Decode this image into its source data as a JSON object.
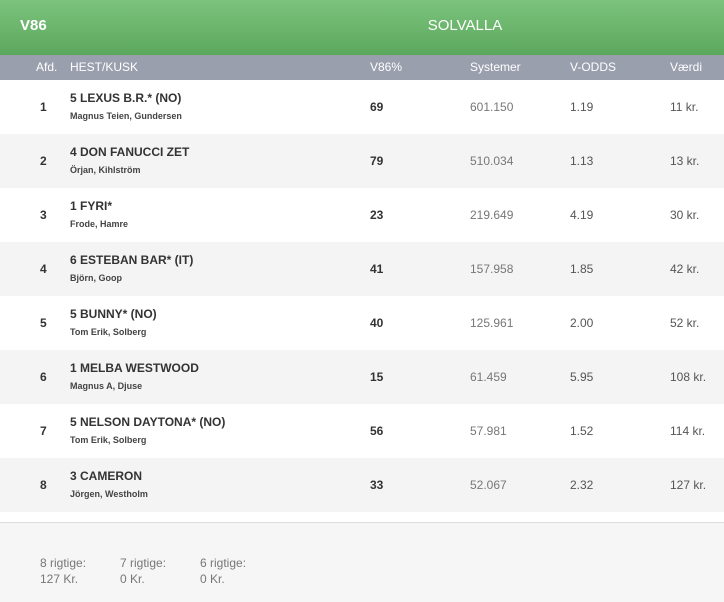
{
  "header": {
    "game": "V86",
    "track": "SOLVALLA"
  },
  "table": {
    "columns": [
      "Afd.",
      "HEST/KUSK",
      "V86%",
      "Systemer",
      "V-ODDS",
      "Værdi"
    ],
    "rows": [
      {
        "afd": "1",
        "horse": "5 LEXUS B.R.* (NO)",
        "driver": "Magnus Teien, Gundersen",
        "pct": "69",
        "systems": "601.150",
        "odds": "1.19",
        "value": "11 kr."
      },
      {
        "afd": "2",
        "horse": "4 DON FANUCCI ZET",
        "driver": "Örjan, Kihlström",
        "pct": "79",
        "systems": "510.034",
        "odds": "1.13",
        "value": "13 kr."
      },
      {
        "afd": "3",
        "horse": "1 FYRI*",
        "driver": "Frode, Hamre",
        "pct": "23",
        "systems": "219.649",
        "odds": "4.19",
        "value": "30 kr."
      },
      {
        "afd": "4",
        "horse": "6 ESTEBAN BAR* (IT)",
        "driver": "Björn, Goop",
        "pct": "41",
        "systems": "157.958",
        "odds": "1.85",
        "value": "42 kr."
      },
      {
        "afd": "5",
        "horse": "5 BUNNY* (NO)",
        "driver": "Tom Erik, Solberg",
        "pct": "40",
        "systems": "125.961",
        "odds": "2.00",
        "value": "52 kr."
      },
      {
        "afd": "6",
        "horse": "1 MELBA WESTWOOD",
        "driver": "Magnus A, Djuse",
        "pct": "15",
        "systems": "61.459",
        "odds": "5.95",
        "value": "108 kr."
      },
      {
        "afd": "7",
        "horse": "5 NELSON DAYTONA* (NO)",
        "driver": "Tom Erik, Solberg",
        "pct": "56",
        "systems": "57.981",
        "odds": "1.52",
        "value": "114 kr."
      },
      {
        "afd": "8",
        "horse": "3 CAMERON",
        "driver": "Jörgen, Westholm",
        "pct": "33",
        "systems": "52.067",
        "odds": "2.32",
        "value": "127 kr."
      }
    ]
  },
  "footer": {
    "prizes": [
      {
        "label": "8 rigtige:",
        "amount": "127 Kr."
      },
      {
        "label": "7 rigtige:",
        "amount": "0 Kr."
      },
      {
        "label": "6 rigtige:",
        "amount": "0 Kr."
      }
    ]
  }
}
